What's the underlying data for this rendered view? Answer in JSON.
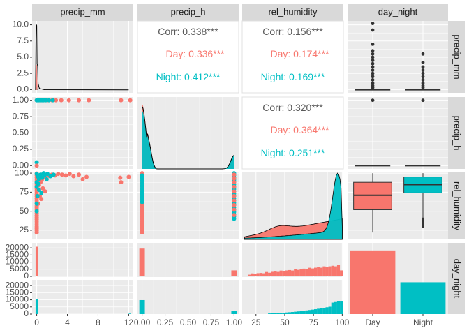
{
  "chart_data": {
    "type": "pairs",
    "variables": [
      "precip_mm",
      "precip_h",
      "rel_humidity",
      "day_night"
    ],
    "groups": [
      "Day",
      "Night"
    ],
    "colors": {
      "Day": "#F8766D",
      "Night": "#00BFC4",
      "panel_bg": "#EBEBEB",
      "strip_bg": "#D9D9D9",
      "text": "#4D4D4D",
      "axis_text": "#4D4D4D"
    },
    "axes": {
      "precip_mm": {
        "range": [
          -0.6,
          12.6
        ],
        "ticks": [
          0,
          4,
          8,
          12
        ],
        "tick_labels": [
          "0",
          "4",
          "8",
          "12"
        ],
        "y_ticks": [
          0,
          2.5,
          5,
          7.5,
          10
        ],
        "y_tick_labels": [
          "0.0",
          "2.5",
          "5.0",
          "7.5",
          "10.0"
        ],
        "y_range": [
          -0.5,
          10.6
        ]
      },
      "precip_h": {
        "range": [
          -0.05,
          1.05
        ],
        "ticks": [
          0,
          0.25,
          0.5,
          0.75,
          1
        ],
        "tick_labels": [
          "0.00",
          "0.25",
          "0.50",
          "0.75",
          "1.00"
        ]
      },
      "rel_humidity": {
        "range": [
          13,
          101
        ],
        "ticks": [
          25,
          50,
          75,
          100
        ],
        "tick_labels": [
          "25",
          "50",
          "75",
          "100"
        ]
      },
      "day_night": {
        "categories": [
          "Day",
          "Night"
        ],
        "count_ticks": [
          0,
          5000,
          10000,
          15000,
          20000
        ],
        "count_tick_labels": [
          "0",
          "5000",
          "10000",
          "15000",
          "20000"
        ],
        "count_range": [
          0,
          23500
        ]
      }
    },
    "correlations": [
      {
        "row": "precip_mm",
        "col": "precip_h",
        "corr": "Corr: 0.338***",
        "day": "Day: 0.336***",
        "night": "Night: 0.412***"
      },
      {
        "row": "precip_mm",
        "col": "rel_humidity",
        "corr": "Corr: 0.156***",
        "day": "Day: 0.174***",
        "night": "Night: 0.169***"
      },
      {
        "row": "precip_h",
        "col": "rel_humidity",
        "corr": "Corr: 0.320***",
        "day": "Day: 0.364***",
        "night": "Night: 0.251***"
      }
    ],
    "counts": {
      "Day": 21000,
      "Night": 10500
    },
    "boxplots": {
      "rel_humidity": {
        "Day": {
          "min": 22,
          "q1": 52,
          "median": 71,
          "q3": 88,
          "max": 100
        },
        "Night": {
          "min": 42,
          "q1": 74,
          "median": 85,
          "q3": 95,
          "max": 100,
          "outliers": [
            30,
            32,
            34,
            36,
            38,
            40
          ]
        }
      },
      "precip_mm": {
        "Day": {
          "median": 0,
          "q1": 0,
          "q3": 0,
          "outliers": [
            0.3,
            0.6,
            1,
            1.5,
            2,
            2.5,
            3,
            3.5,
            4,
            4.5,
            5,
            5.5,
            6,
            7,
            9.2,
            10.2
          ]
        },
        "Night": {
          "median": 0,
          "q1": 0,
          "q3": 0,
          "outliers": [
            0.3,
            0.6,
            1,
            1.5,
            2,
            2.5,
            3,
            3.5,
            4.2,
            5.5
          ]
        }
      },
      "precip_h": {
        "Day": {
          "median": 0,
          "outliers": [
            1
          ]
        },
        "Night": {
          "median": 0,
          "outliers": [
            1
          ]
        }
      }
    }
  }
}
